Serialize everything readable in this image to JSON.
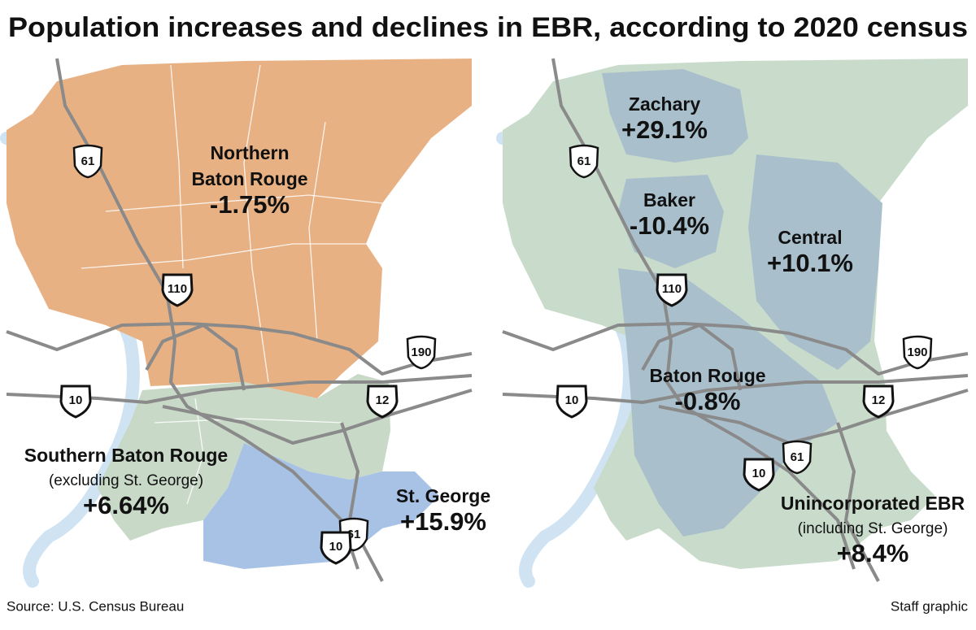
{
  "title": "Population increases and declines in EBR, according to 2020 census",
  "maps": [
    {
      "labels": [
        {
          "name": [
            "Northern",
            "Baton Rouge"
          ],
          "change": "-1.75%"
        },
        {
          "name": [
            "Southern Baton Rouge"
          ],
          "note": "(excluding St. George)",
          "change": "+6.64%"
        },
        {
          "name": [
            "St. George"
          ],
          "change": "+15.9%"
        }
      ],
      "highways": [
        "61",
        "110",
        "190",
        "10",
        "12",
        "61",
        "10"
      ]
    },
    {
      "labels": [
        {
          "name": [
            "Zachary"
          ],
          "change": "+29.1%"
        },
        {
          "name": [
            "Baker"
          ],
          "change": "-10.4%"
        },
        {
          "name": [
            "Central"
          ],
          "change": "+10.1%"
        },
        {
          "name": [
            "Baton Rouge"
          ],
          "change": "-0.8%"
        },
        {
          "name": [
            "Unincorporated EBR"
          ],
          "note": "(including St. George)",
          "change": "+8.4%"
        }
      ],
      "highways": [
        "61",
        "110",
        "190",
        "10",
        "12",
        "61",
        "10"
      ]
    }
  ],
  "source": "Source: U.S. Census Bureau",
  "credit": "Staff graphic"
}
